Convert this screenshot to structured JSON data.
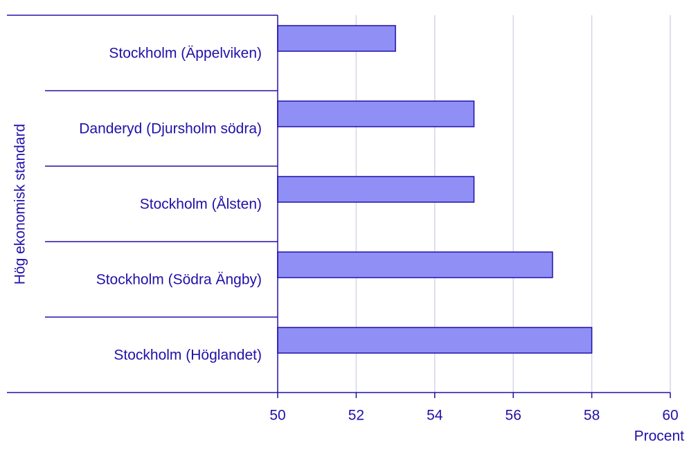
{
  "chart_data": {
    "type": "barh",
    "group_label": "Hög ekonomisk standard",
    "x_label": "Procent",
    "categories": [
      "Stockholm (Äppelviken)",
      "Danderyd (Djursholm södra)",
      "Stockholm (Ålsten)",
      "Stockholm (Södra Ängby)",
      "Stockholm (Höglandet)"
    ],
    "values": [
      53,
      55,
      55,
      57,
      58
    ],
    "color": "#8f8ff5",
    "xlim": [
      50,
      60
    ],
    "xticks": [
      50,
      52,
      54,
      56,
      58,
      60
    ],
    "grid": true
  }
}
